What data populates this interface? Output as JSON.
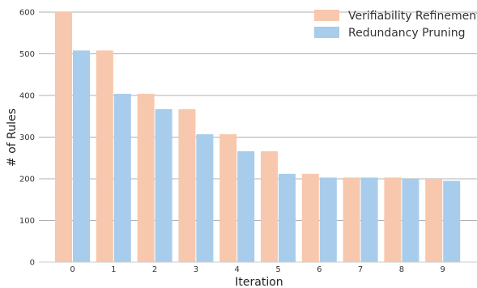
{
  "chart_data": {
    "type": "bar",
    "title": "",
    "xlabel": "Iteration",
    "ylabel": "# of Rules",
    "categories": [
      "0",
      "1",
      "2",
      "3",
      "4",
      "5",
      "6",
      "7",
      "8",
      "9"
    ],
    "ylim": [
      0,
      600
    ],
    "yticks": [
      0,
      100,
      200,
      300,
      400,
      500,
      600
    ],
    "grid": "horizontal",
    "legend_position": "top-right",
    "series": [
      {
        "name": "Verifiability Refinement",
        "color": "#F7C8AD",
        "values": [
          600,
          508,
          404,
          367,
          307,
          266,
          212,
          203,
          203,
          200
        ]
      },
      {
        "name": "Redundancy Pruning",
        "color": "#A8CCEC",
        "values": [
          508,
          404,
          367,
          307,
          266,
          212,
          203,
          203,
          200,
          195
        ]
      }
    ]
  }
}
